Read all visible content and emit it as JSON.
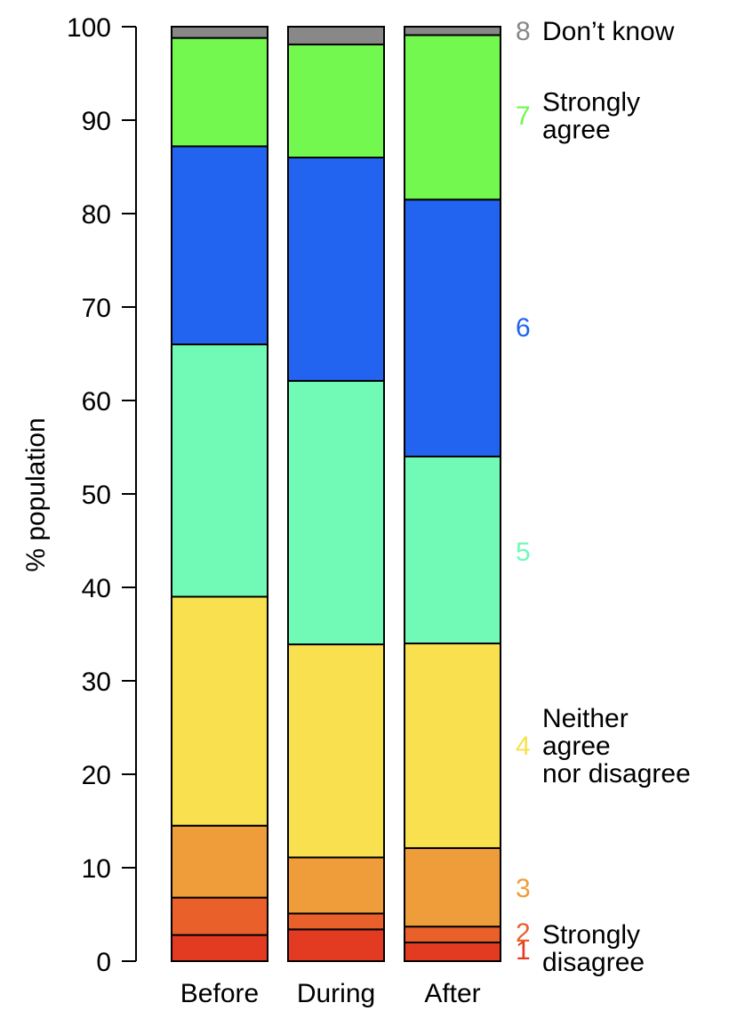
{
  "chart_data": {
    "type": "bar",
    "stacked": true,
    "categories": [
      "Before",
      "During",
      "After"
    ],
    "ylabel": "% population",
    "ylim": [
      0,
      100
    ],
    "yticks": [
      0,
      10,
      20,
      30,
      40,
      50,
      60,
      70,
      80,
      90,
      100
    ],
    "grid": false,
    "legend_position": "right",
    "series": [
      {
        "code": "1",
        "label_lines": [],
        "color": "#E33A22",
        "values": [
          2.8,
          3.4,
          2.0
        ]
      },
      {
        "code": "2",
        "label_lines": [],
        "color": "#EA602A",
        "values": [
          4.0,
          1.7,
          1.7
        ]
      },
      {
        "code": "3",
        "label_lines": [],
        "color": "#EF9D3A",
        "values": [
          7.7,
          6.0,
          8.4
        ]
      },
      {
        "code": "4",
        "label_lines": [
          "Neither",
          "agree",
          "nor disagree"
        ],
        "color": "#F9E04E",
        "values": [
          24.5,
          22.8,
          21.9
        ]
      },
      {
        "code": "5",
        "label_lines": [],
        "color": "#70FAB6",
        "values": [
          27.0,
          28.2,
          20.0
        ]
      },
      {
        "code": "6",
        "label_lines": [],
        "color": "#2264EF",
        "values": [
          21.2,
          23.9,
          27.5
        ]
      },
      {
        "code": "7",
        "label_lines": [
          "Strongly",
          "agree"
        ],
        "color": "#72F84E",
        "values": [
          11.6,
          12.1,
          17.6
        ]
      },
      {
        "code": "8",
        "label_lines": [
          "Don’t know"
        ],
        "color": "#888888",
        "values": [
          1.2,
          1.9,
          0.9
        ]
      }
    ],
    "bottom_annotation_lines": [
      "Strongly",
      "disagree"
    ]
  }
}
